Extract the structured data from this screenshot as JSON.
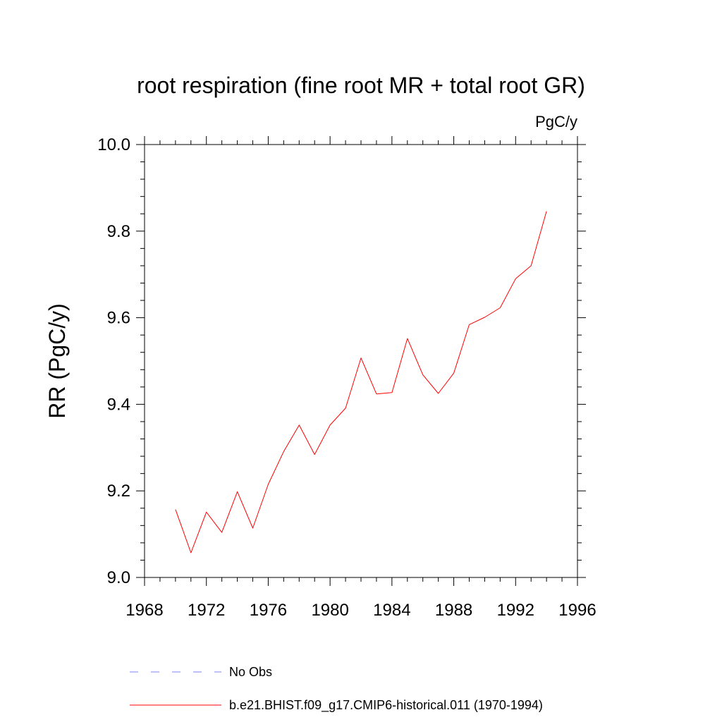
{
  "chart_data": {
    "type": "line",
    "title": "root respiration (fine root MR + total root GR)",
    "units": "PgC/y",
    "ylabel": "RR  (PgC/y)",
    "xlabel": "",
    "xlim": [
      1968,
      1996
    ],
    "ylim": [
      9.0,
      10.0
    ],
    "xticks": [
      1968,
      1972,
      1976,
      1980,
      1984,
      1988,
      1992,
      1996
    ],
    "xtick_labels": [
      "1968",
      "1972",
      "1976",
      "1980",
      "1984",
      "1988",
      "1992",
      "1996"
    ],
    "yticks": [
      9.0,
      9.2,
      9.4,
      9.6,
      9.8,
      10.0
    ],
    "ytick_labels": [
      "9.0",
      "9.2",
      "9.4",
      "9.6",
      "9.8",
      "10.0"
    ],
    "grid": false,
    "legend_position": "bottom",
    "series": [
      {
        "name": "b.e21.BHIST.f09_g17.CMIP6-historical.011 (1970-1994)",
        "color": "#ff0000",
        "style": "solid",
        "x": [
          1970,
          1971,
          1972,
          1973,
          1974,
          1975,
          1976,
          1977,
          1978,
          1979,
          1980,
          1981,
          1982,
          1983,
          1984,
          1985,
          1986,
          1987,
          1988,
          1989,
          1990,
          1991,
          1992,
          1993,
          1994
        ],
        "y": [
          9.157,
          9.057,
          9.151,
          9.104,
          9.198,
          9.114,
          9.215,
          9.291,
          9.352,
          9.284,
          9.352,
          9.391,
          9.507,
          9.424,
          9.427,
          9.552,
          9.468,
          9.425,
          9.472,
          9.584,
          9.601,
          9.623,
          9.69,
          9.72,
          9.846
        ]
      }
    ],
    "legend": [
      {
        "label": "No Obs",
        "color": "#8080ff",
        "style": "dashed"
      },
      {
        "label": "b.e21.BHIST.f09_g17.CMIP6-historical.011 (1970-1994)",
        "color": "#ff0000",
        "style": "solid"
      }
    ]
  }
}
